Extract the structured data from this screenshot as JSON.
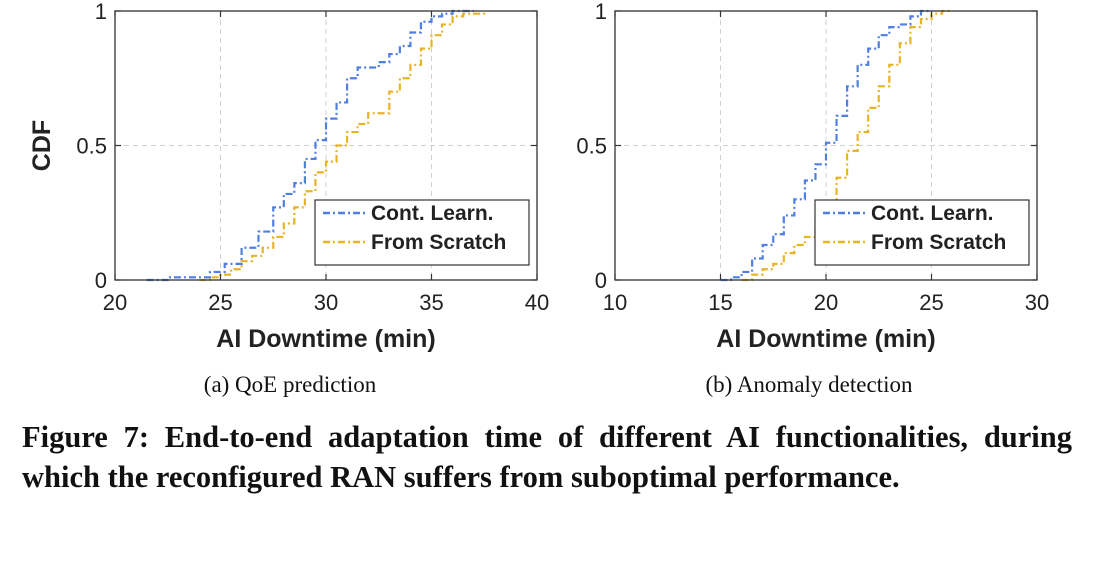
{
  "colors": {
    "cont_learn": "#4f7fe0",
    "from_scratch": "#e6b427",
    "grid": "#d0d0d0",
    "axis": "#333333"
  },
  "chart_data": [
    {
      "type": "line",
      "subcaption": "(a)  QoE prediction",
      "xlabel": "AI Downtime (min)",
      "ylabel": "CDF",
      "xlim": [
        20,
        40
      ],
      "ylim": [
        0,
        1
      ],
      "xticks": [
        20,
        25,
        30,
        35,
        40
      ],
      "yticks": [
        0,
        0.5,
        1
      ],
      "ytick_labels": [
        "0",
        "0.5",
        "1"
      ],
      "grid": true,
      "legend_position": "bottom-right",
      "series": [
        {
          "name": "Cont. Learn.",
          "style": "dash-dot",
          "x": [
            21.5,
            22.5,
            23.5,
            24.5,
            25.2,
            26.0,
            26.8,
            27.5,
            28.0,
            28.5,
            29.0,
            29.5,
            30.0,
            30.5,
            31.0,
            31.5,
            32.5,
            33.0,
            33.5,
            34.0,
            34.5,
            35.0,
            35.5,
            36.0,
            37.0
          ],
          "y": [
            0.0,
            0.01,
            0.01,
            0.03,
            0.06,
            0.12,
            0.18,
            0.27,
            0.32,
            0.36,
            0.45,
            0.52,
            0.6,
            0.66,
            0.75,
            0.79,
            0.81,
            0.84,
            0.87,
            0.92,
            0.96,
            0.98,
            0.99,
            1.0,
            1.0
          ]
        },
        {
          "name": "From Scratch",
          "style": "dash-dot",
          "x": [
            24.0,
            24.5,
            25.0,
            25.5,
            26.0,
            26.5,
            27.0,
            27.5,
            28.0,
            28.5,
            29.0,
            29.5,
            30.0,
            30.5,
            31.0,
            31.5,
            32.0,
            33.0,
            33.5,
            34.0,
            34.5,
            35.0,
            35.5,
            36.0,
            36.5,
            37.5
          ],
          "y": [
            0.0,
            0.01,
            0.02,
            0.04,
            0.07,
            0.09,
            0.12,
            0.16,
            0.21,
            0.27,
            0.33,
            0.4,
            0.44,
            0.5,
            0.55,
            0.58,
            0.62,
            0.7,
            0.75,
            0.8,
            0.86,
            0.91,
            0.95,
            0.98,
            0.99,
            1.0
          ]
        }
      ]
    },
    {
      "type": "line",
      "subcaption": "(b)  Anomaly detection",
      "xlabel": "AI Downtime (min)",
      "ylabel": "",
      "xlim": [
        10,
        30
      ],
      "ylim": [
        0,
        1
      ],
      "xticks": [
        10,
        15,
        20,
        25,
        30
      ],
      "yticks": [
        0,
        0.5,
        1
      ],
      "ytick_labels": [
        "0",
        "0.5",
        "1"
      ],
      "grid": true,
      "legend_position": "bottom-right",
      "series": [
        {
          "name": "Cont. Learn.",
          "style": "dash-dot",
          "x": [
            15.0,
            15.5,
            16.0,
            16.5,
            17.0,
            17.5,
            18.0,
            18.5,
            19.0,
            19.5,
            20.0,
            20.5,
            21.0,
            21.5,
            22.0,
            22.5,
            23.0,
            23.5,
            24.0,
            24.5,
            25.0
          ],
          "y": [
            0.0,
            0.01,
            0.03,
            0.08,
            0.13,
            0.17,
            0.24,
            0.3,
            0.37,
            0.43,
            0.51,
            0.61,
            0.72,
            0.8,
            0.86,
            0.91,
            0.94,
            0.95,
            0.98,
            1.0,
            1.0
          ]
        },
        {
          "name": "From Scratch",
          "style": "dash-dot",
          "x": [
            16.0,
            16.5,
            17.0,
            17.5,
            18.0,
            18.5,
            19.0,
            19.5,
            20.0,
            20.5,
            21.0,
            21.5,
            22.0,
            22.5,
            23.0,
            23.5,
            24.0,
            24.5,
            25.0,
            25.5,
            26.0
          ],
          "y": [
            0.0,
            0.02,
            0.04,
            0.06,
            0.1,
            0.13,
            0.16,
            0.21,
            0.28,
            0.38,
            0.48,
            0.55,
            0.64,
            0.72,
            0.8,
            0.88,
            0.94,
            0.97,
            0.99,
            1.0,
            1.0
          ]
        }
      ]
    }
  ],
  "caption": "Figure 7: End-to-end adaptation time of different AI functionalities, during which the reconfigured RAN suffers from suboptimal performance."
}
